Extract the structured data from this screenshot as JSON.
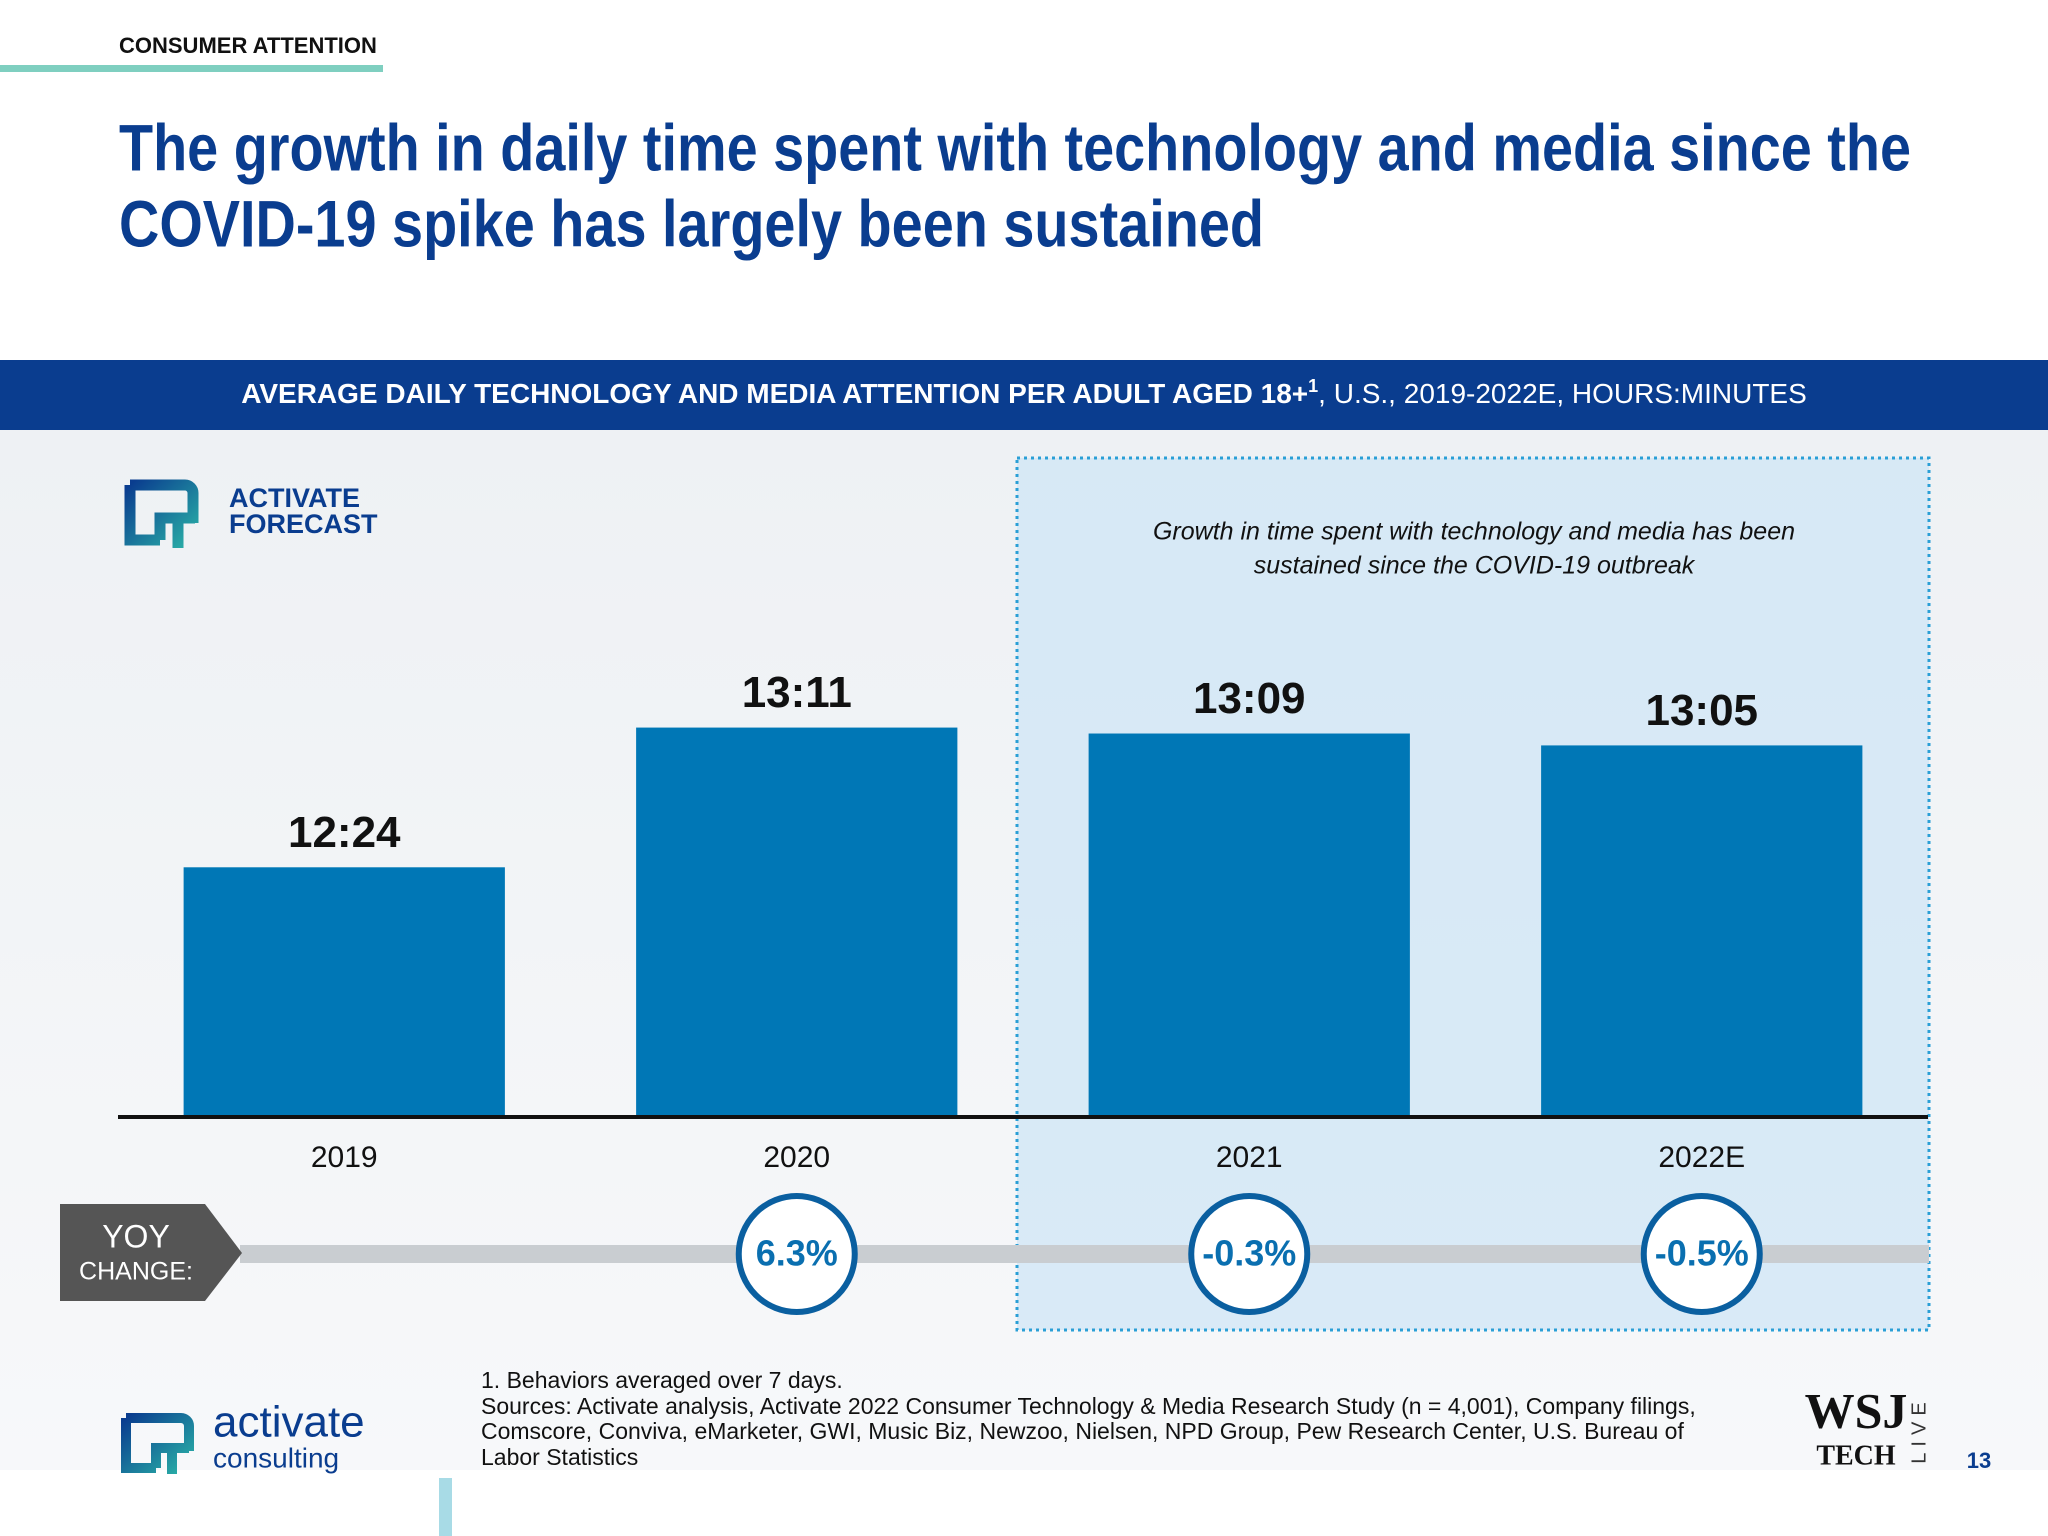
{
  "header": {
    "section": "CONSUMER ATTENTION",
    "title_lines": [
      "The growth in daily time spent with technology and media since the",
      "COVID-19 spike has largely been sustained"
    ]
  },
  "chart_data": {
    "type": "bar",
    "title_bold": "AVERAGE DAILY TECHNOLOGY AND MEDIA ATTENTION PER ADULT AGED 18+",
    "title_sup": "1",
    "title_rest": ", U.S., 2019-2022E, HOURS:MINUTES",
    "badge": [
      "ACTIVATE",
      "FORECAST"
    ],
    "annotation": [
      "Growth in time spent with technology and media has been",
      "sustained since the COVID-19 outbreak"
    ],
    "categories": [
      "2019",
      "2020",
      "2021",
      "2022E"
    ],
    "values": [
      744,
      791,
      789,
      785
    ],
    "value_labels": [
      "12:24",
      "13:11",
      "13:09",
      "13:05"
    ],
    "color": "#0077b6",
    "ylim": [
      660,
      880
    ],
    "yoy": {
      "title_lines": [
        "YOY",
        "CHANGE:"
      ],
      "values": [
        null,
        6.3,
        -0.3,
        -0.5
      ],
      "value_labels": [
        null,
        "6.3%",
        "-0.3%",
        "-0.5%"
      ]
    }
  },
  "footer": {
    "notes": [
      "1. Behaviors averaged over 7 days.",
      "Sources: Activate analysis, Activate 2022 Consumer Technology & Media Research Study (n = 4,001), Company filings,",
      "Comscore, Conviva, eMarketer, GWI, Music Biz, Newzoo, Nielsen, NPD Group, Pew Research Center, U.S. Bureau of",
      "Labor Statistics"
    ],
    "logo": [
      "activate",
      "consulting"
    ],
    "partner": [
      "WSJ",
      "TECH",
      "LIVE"
    ],
    "page": "13"
  }
}
